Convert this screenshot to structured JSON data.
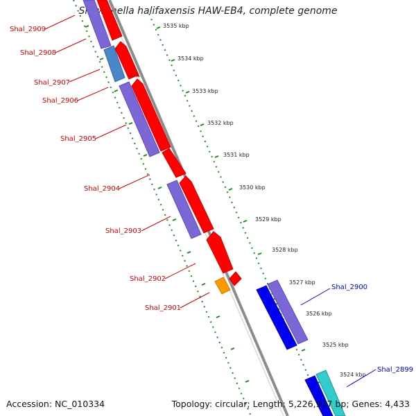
{
  "title": "Shewanella halifaxensis HAW-EB4, complete genome",
  "accession": "Accession: NC_010334",
  "summary": "Topology: circular; Length: 5,226,917 bp; Genes: 4,433",
  "colors": {
    "label_red": "#cc0000",
    "label_blue": "#0000cc",
    "ruler": "#1a8a1a",
    "backbone": "#8c8c8c"
  },
  "ruler_labels": [
    "3535 kbp",
    "3534 kbp",
    "3533 kbp",
    "3532 kbp",
    "3531 kbp",
    "3530 kbp",
    "3529 kbp",
    "3528 kbp",
    "3527 kbp",
    "3526 kbp",
    "3525 kbp",
    "3524 kbp"
  ],
  "genes": [
    {
      "id": "Shal_2909",
      "strand": "left",
      "color": "red"
    },
    {
      "id": "Shal_2908",
      "strand": "left",
      "color": "red"
    },
    {
      "id": "Shal_2907",
      "strand": "left",
      "color": "red"
    },
    {
      "id": "Shal_2906",
      "strand": "left",
      "color": "red"
    },
    {
      "id": "Shal_2905",
      "strand": "left",
      "color": "red"
    },
    {
      "id": "Shal_2904",
      "strand": "left",
      "color": "red"
    },
    {
      "id": "Shal_2903",
      "strand": "left",
      "color": "red"
    },
    {
      "id": "Shal_2902",
      "strand": "left",
      "color": "red"
    },
    {
      "id": "Shal_2901",
      "strand": "left",
      "color": "red"
    },
    {
      "id": "Shal_2900",
      "strand": "right",
      "color": "blue"
    },
    {
      "id": "Shal_2899",
      "strand": "right",
      "color": "blue"
    }
  ]
}
